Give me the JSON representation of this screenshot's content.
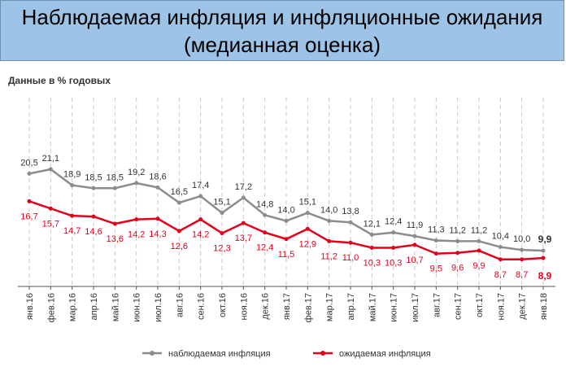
{
  "chart_data": {
    "type": "line",
    "title_line1": "Наблюдаемая инфляция и инфляционные ожидания",
    "title_line2": "(медианная оценка)",
    "ylabel": "Данные в % годовых",
    "grid": "vertical dashed",
    "legend_position": "bottom-center",
    "categories": [
      "янв.16",
      "фев.16",
      "мар.16",
      "апр.16",
      "май.16",
      "июн.16",
      "июл.16",
      "авг.16",
      "сен.16",
      "окт.16",
      "ноя.16",
      "дек.16",
      "янв.17",
      "фев.17",
      "мар.17",
      "апр.17",
      "май.17",
      "июн.17",
      "июл.17",
      "авг.17",
      "сен.17",
      "окт.17",
      "ноя.17",
      "дек.17",
      "янв.18"
    ],
    "series": [
      {
        "name": "наблюдаемая инфляция",
        "color": "#8c8c8c",
        "label_color": "#333333",
        "values": [
          20.5,
          21.1,
          18.9,
          18.5,
          18.5,
          19.2,
          18.6,
          16.5,
          17.4,
          15.1,
          17.2,
          14.8,
          14.0,
          15.1,
          14.0,
          13.8,
          12.1,
          12.4,
          11.9,
          11.3,
          11.2,
          11.2,
          10.4,
          10.0,
          9.9
        ],
        "labels": [
          "20,5",
          "21,1",
          "18,9",
          "18,5",
          "18,5",
          "19,2",
          "18,6",
          "16,5",
          "17,4",
          "15,1",
          "17,2",
          "14,8",
          "14,0",
          "15,1",
          "14,0",
          "13,8",
          "12,1",
          "12,4",
          "11,9",
          "11,3",
          "11,2",
          "11,2",
          "10,4",
          "10,0",
          "9,9"
        ]
      },
      {
        "name": "ожидаемая инфляция",
        "color": "#e3001b",
        "label_color": "#e3001b",
        "values": [
          16.7,
          15.7,
          14.7,
          14.6,
          13.6,
          14.2,
          14.3,
          12.6,
          14.2,
          12.3,
          13.7,
          12.4,
          11.5,
          12.9,
          11.2,
          11.0,
          10.3,
          10.3,
          10.7,
          9.5,
          9.6,
          9.9,
          8.7,
          8.7,
          8.9
        ],
        "labels": [
          "16,7",
          "15,7",
          "14,7",
          "14,6",
          "13,6",
          "14,2",
          "14,3",
          "12,6",
          "14,2",
          "12,3",
          "13,7",
          "12,4",
          "11,5",
          "12,9",
          "11,2",
          "11,0",
          "10,3",
          "10,3",
          "10,7",
          "9,5",
          "9,6",
          "9,9",
          "8,7",
          "8,7",
          "8,9"
        ]
      }
    ],
    "colors": {
      "title_background": "#9dc3e6",
      "grid": "#c8c8c8",
      "axis": "#555555"
    }
  }
}
